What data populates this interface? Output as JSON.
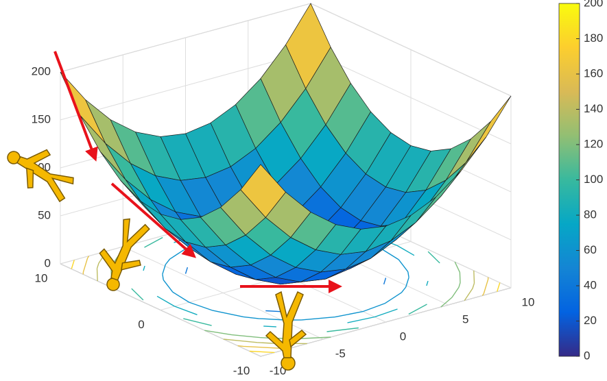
{
  "chart_data": {
    "type": "surface",
    "x": [
      -10,
      -8,
      -6,
      -4,
      -2,
      0,
      2,
      4,
      6,
      8,
      10
    ],
    "y": [
      -10,
      -8,
      -6,
      -4,
      -2,
      0,
      2,
      4,
      6,
      8,
      10
    ],
    "z": [
      [
        200,
        164,
        136,
        116,
        104,
        100,
        104,
        116,
        136,
        164,
        200
      ],
      [
        164,
        128,
        100,
        80,
        68,
        64,
        68,
        80,
        100,
        128,
        164
      ],
      [
        136,
        100,
        72,
        52,
        40,
        36,
        40,
        52,
        72,
        100,
        136
      ],
      [
        116,
        80,
        52,
        32,
        20,
        16,
        20,
        32,
        52,
        80,
        116
      ],
      [
        104,
        68,
        40,
        20,
        8,
        4,
        8,
        20,
        40,
        68,
        104
      ],
      [
        100,
        64,
        36,
        16,
        4,
        0,
        4,
        16,
        36,
        64,
        100
      ],
      [
        104,
        68,
        40,
        20,
        8,
        4,
        8,
        20,
        40,
        68,
        104
      ],
      [
        116,
        80,
        52,
        32,
        20,
        16,
        20,
        32,
        52,
        80,
        116
      ],
      [
        136,
        100,
        72,
        52,
        40,
        36,
        40,
        52,
        72,
        100,
        136
      ],
      [
        164,
        128,
        100,
        80,
        68,
        64,
        68,
        80,
        100,
        128,
        164
      ],
      [
        200,
        164,
        136,
        116,
        104,
        100,
        104,
        116,
        136,
        164,
        200
      ]
    ],
    "xlim": [
      -10,
      10
    ],
    "xticks": [
      -10,
      0,
      10
    ],
    "ylim": [
      -10,
      10
    ],
    "yticks": [
      -10,
      -5,
      0,
      5,
      10
    ],
    "zlim": [
      0,
      200
    ],
    "zticks": [
      0,
      50,
      100,
      150,
      200
    ],
    "clim": [
      0,
      200
    ],
    "cticks": [
      0,
      20,
      40,
      60,
      80,
      100,
      120,
      140,
      160,
      180,
      200
    ],
    "contour_levels": [
      20,
      40,
      60,
      80,
      100,
      120,
      140,
      160,
      180
    ],
    "colormap": [
      "#352a87",
      "#0363e1",
      "#1485d4",
      "#06a7c6",
      "#38b99e",
      "#92bf73",
      "#d9ba56",
      "#fcce2e",
      "#f9fb0e"
    ],
    "grid": true
  }
}
